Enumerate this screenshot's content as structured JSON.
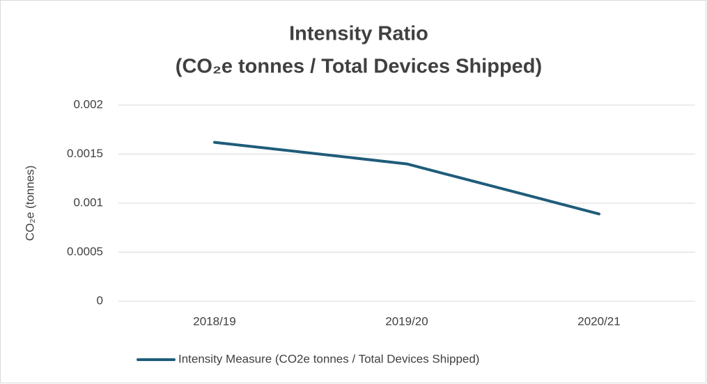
{
  "chart_data": {
    "type": "line",
    "title": "Intensity Ratio",
    "subtitle": "(CO₂e tonnes / Total Devices Shipped)",
    "y_label": "CO₂e (tonnes)",
    "categories": [
      "2018/19",
      "2019/20",
      "2020/21"
    ],
    "series": [
      {
        "name": "Intensity Measure (CO2e tonnes / Total Devices Shipped)",
        "color": "#1f5c7a",
        "values": [
          0.00162,
          0.0014,
          0.00089
        ]
      }
    ],
    "ylim": [
      0,
      0.002
    ],
    "yticks": [
      0,
      0.0005,
      0.001,
      0.0015,
      0.002
    ],
    "grid": true,
    "legend": "bottom"
  }
}
